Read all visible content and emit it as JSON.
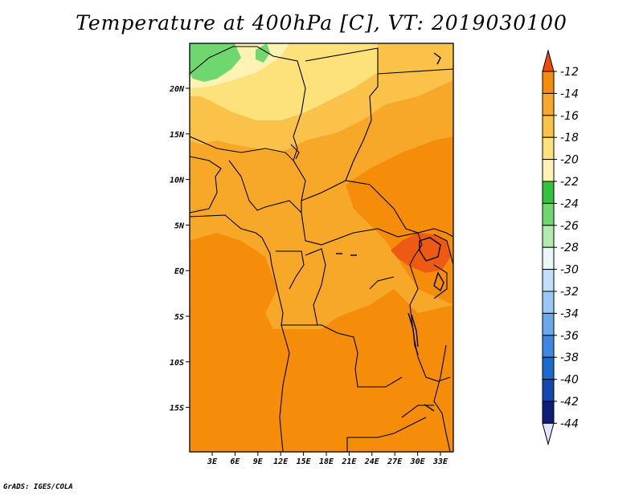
{
  "title": "Temperature at 400hPa [C], VT: 2019030100",
  "credit": "GrADS: IGES/COLA",
  "map": {
    "lon_ticks": [
      "3E",
      "6E",
      "9E",
      "12E",
      "15E",
      "18E",
      "21E",
      "24E",
      "27E",
      "30E",
      "33E"
    ],
    "lat_ticks": [
      "20N",
      "15N",
      "10N",
      "5N",
      "EQ",
      "5S",
      "10S",
      "15S"
    ]
  },
  "colorbar": {
    "labels": [
      "-12",
      "-14",
      "-16",
      "-18",
      "-20",
      "-22",
      "-24",
      "-26",
      "-28",
      "-30",
      "-32",
      "-34",
      "-36",
      "-38",
      "-40",
      "-42",
      "-44"
    ],
    "colors": [
      "#f04a0a",
      "#f58c0a",
      "#f8a828",
      "#fbc24a",
      "#fde17a",
      "#fff3b4",
      "#34c23a",
      "#6ed86e",
      "#b0ecae",
      "#e8f8f8",
      "#c0e0f8",
      "#98c8f4",
      "#6aa8ee",
      "#3c88e2",
      "#1a6ad0",
      "#1248b0",
      "#0c1e7a",
      "#e4e4ff"
    ],
    "top_color": "#f04a0a",
    "bottom_color": "#e4e4ff"
  },
  "field_colors": {
    "lt_m12": "#ee5a14",
    "m12_m14": "#f58c0a",
    "m14_m16": "#f8a828",
    "m16_m18": "#fbc24a",
    "m18_m20": "#fde17a",
    "m20_m22": "#fff3b4",
    "m22_m24": "#34c23a",
    "m24_m26": "#6ed86e"
  }
}
